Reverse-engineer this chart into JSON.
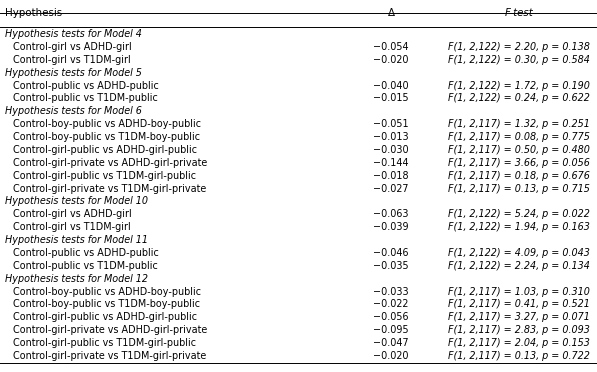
{
  "headers": [
    "Hypothesis",
    "Δ",
    "F-test"
  ],
  "rows": [
    {
      "type": "section",
      "text": "Hypothesis tests for Model 4"
    },
    {
      "type": "data",
      "hypothesis": "Control-girl vs ADHD-girl",
      "delta": "−0.054",
      "ftest": "F(1, 2,122) = 2.20, p = 0.138"
    },
    {
      "type": "data",
      "hypothesis": "Control-girl vs T1DM-girl",
      "delta": "−0.020",
      "ftest": "F(1, 2,122) = 0.30, p = 0.584"
    },
    {
      "type": "section",
      "text": "Hypothesis tests for Model 5"
    },
    {
      "type": "data",
      "hypothesis": "Control-public vs ADHD-public",
      "delta": "−0.040",
      "ftest": "F(1, 2,122) = 1.72, p = 0.190"
    },
    {
      "type": "data",
      "hypothesis": "Control-public vs T1DM-public",
      "delta": "−0.015",
      "ftest": "F(1, 2,122) = 0.24, p = 0.622"
    },
    {
      "type": "section",
      "text": "Hypothesis tests for Model 6"
    },
    {
      "type": "data",
      "hypothesis": "Control-boy-public vs ADHD-boy-public",
      "delta": "−0.051",
      "ftest": "F(1, 2,117) = 1.32, p = 0.251"
    },
    {
      "type": "data",
      "hypothesis": "Control-boy-public vs T1DM-boy-public",
      "delta": "−0.013",
      "ftest": "F(1, 2,117) = 0.08, p = 0.775"
    },
    {
      "type": "data",
      "hypothesis": "Control-girl-public vs ADHD-girl-public",
      "delta": "−0.030",
      "ftest": "F(1, 2,117) = 0.50, p = 0.480"
    },
    {
      "type": "data",
      "hypothesis": "Control-girl-private vs ADHD-girl-private",
      "delta": "−0.144",
      "ftest": "F(1, 2,117) = 3.66, p = 0.056"
    },
    {
      "type": "data",
      "hypothesis": "Control-girl-public vs T1DM-girl-public",
      "delta": "−0.018",
      "ftest": "F(1, 2,117) = 0.18, p = 0.676"
    },
    {
      "type": "data",
      "hypothesis": "Control-girl-private vs T1DM-girl-private",
      "delta": "−0.027",
      "ftest": "F(1, 2,117) = 0.13, p = 0.715"
    },
    {
      "type": "section",
      "text": "Hypothesis tests for Model 10"
    },
    {
      "type": "data",
      "hypothesis": "Control-girl vs ADHD-girl",
      "delta": "−0.063",
      "ftest": "F(1, 2,122) = 5.24, p = 0.022"
    },
    {
      "type": "data",
      "hypothesis": "Control-girl vs T1DM-girl",
      "delta": "−0.039",
      "ftest": "F(1, 2,122) = 1.94, p = 0.163"
    },
    {
      "type": "section",
      "text": "Hypothesis tests for Model 11"
    },
    {
      "type": "data",
      "hypothesis": "Control-public vs ADHD-public",
      "delta": "−0.046",
      "ftest": "F(1, 2,122) = 4.09, p = 0.043"
    },
    {
      "type": "data",
      "hypothesis": "Control-public vs T1DM-public",
      "delta": "−0.035",
      "ftest": "F(1, 2,122) = 2.24, p = 0.134"
    },
    {
      "type": "section",
      "text": "Hypothesis tests for Model 12"
    },
    {
      "type": "data",
      "hypothesis": "Control-boy-public vs ADHD-boy-public",
      "delta": "−0.033",
      "ftest": "F(1, 2,117) = 1.03, p = 0.310"
    },
    {
      "type": "data",
      "hypothesis": "Control-boy-public vs T1DM-boy-public",
      "delta": "−0.022",
      "ftest": "F(1, 2,117) = 0.41, p = 0.521"
    },
    {
      "type": "data",
      "hypothesis": "Control-girl-public vs ADHD-girl-public",
      "delta": "−0.056",
      "ftest": "F(1, 2,117) = 3.27, p = 0.071"
    },
    {
      "type": "data",
      "hypothesis": "Control-girl-private vs ADHD-girl-private",
      "delta": "−0.095",
      "ftest": "F(1, 2,117) = 2.83, p = 0.093"
    },
    {
      "type": "data",
      "hypothesis": "Control-girl-public vs T1DM-girl-public",
      "delta": "−0.047",
      "ftest": "F(1, 2,117) = 2.04, p = 0.153"
    },
    {
      "type": "data",
      "hypothesis": "Control-girl-private vs T1DM-girl-private",
      "delta": "−0.020",
      "ftest": "F(1, 2,117) = 0.13, p = 0.722"
    }
  ],
  "col_hyp": 0.008,
  "col_hyp_indent": 0.022,
  "col_delta": 0.655,
  "col_ftest": 0.87,
  "header_fontsize": 7.4,
  "data_fontsize": 6.9,
  "section_fontsize": 6.9,
  "bg_color": "#ffffff",
  "text_color": "#000000",
  "line_color": "#000000"
}
